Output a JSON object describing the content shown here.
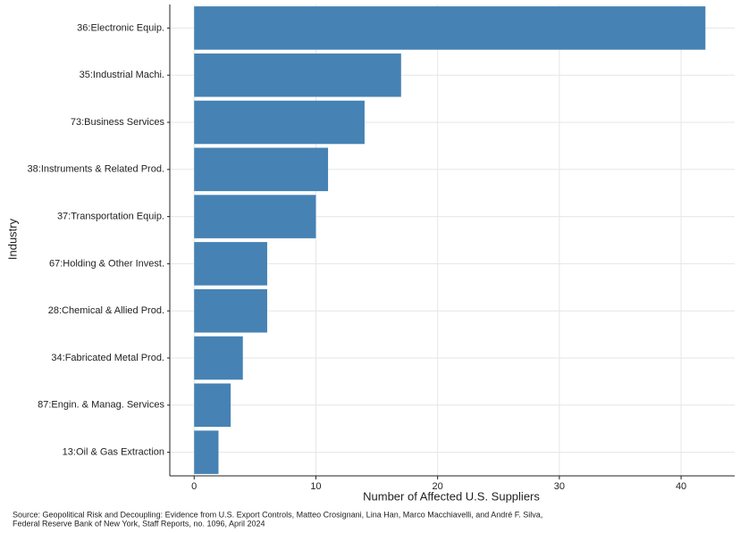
{
  "chart_data": {
    "type": "bar",
    "orientation": "horizontal",
    "x_label": "Number of Affected U.S. Suppliers",
    "y_label": "Industry",
    "categories": [
      "36:Electronic Equip.",
      "35:Industrial Machi.",
      "73:Business Services",
      "38:Instruments & Related Prod.",
      "37:Transportation Equip.",
      "67:Holding & Other Invest.",
      "28:Chemical & Allied Prod.",
      "34:Fabricated Metal Prod.",
      "87:Engin. & Manag. Services",
      "13:Oil & Gas Extraction"
    ],
    "values": [
      42,
      17,
      14,
      11,
      10,
      6,
      6,
      4,
      3,
      2
    ],
    "color": "#4682b4",
    "xlim": [
      -2,
      44.4
    ],
    "xticks": [
      0,
      10,
      20,
      30,
      40
    ],
    "grid": true,
    "source": [
      "Source: Geopolitical Risk and Decoupling: Evidence from U.S. Export Controls, Matteo Crosignani, Lina Han, Marco Macchiavelli, and André F. Silva,",
      "Federal Reserve Bank of New York, Staff Reports, no. 1096, April 2024"
    ]
  }
}
